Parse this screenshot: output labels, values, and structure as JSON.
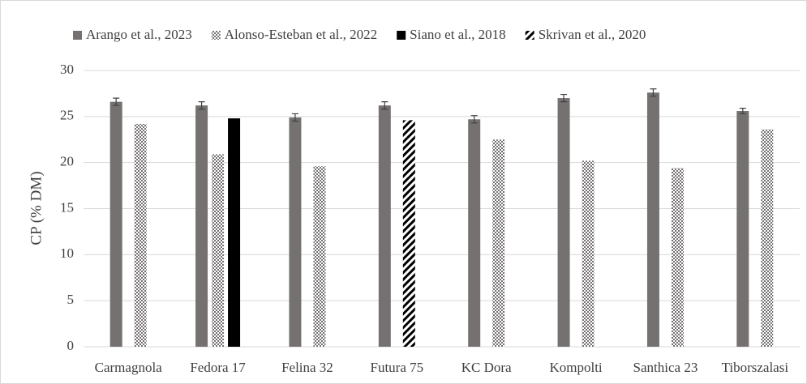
{
  "chart_data": {
    "type": "bar",
    "y_label": "CP (% DM)",
    "categories": [
      "Carmagnola",
      "Fedora 17",
      "Felina 32",
      "Futura 75",
      "KC Dora",
      "Kompolti",
      "Santhica 23",
      "Tiborszalasi"
    ],
    "series": [
      {
        "name": "Arango et al., 2023",
        "color": "#767171",
        "pattern": "solid",
        "values": [
          26.6,
          26.2,
          24.9,
          26.2,
          24.7,
          27.0,
          27.6,
          25.6
        ],
        "errors": [
          0.4,
          0.4,
          0.4,
          0.4,
          0.4,
          0.4,
          0.4,
          0.3
        ]
      },
      {
        "name": "Alonso-Esteban et al., 2022",
        "color": "#767171",
        "pattern": "checker",
        "values": [
          24.2,
          20.9,
          19.6,
          null,
          22.5,
          20.2,
          19.4,
          23.6
        ]
      },
      {
        "name": "Siano et al., 2018",
        "color": "#000000",
        "pattern": "solid",
        "values": [
          null,
          24.8,
          null,
          null,
          null,
          null,
          null,
          null
        ]
      },
      {
        "name": "Skrivan et al., 2020",
        "color": "#000000",
        "pattern": "diagonal",
        "values": [
          null,
          null,
          null,
          24.6,
          null,
          null,
          null,
          null
        ]
      }
    ],
    "ylim": [
      0,
      30
    ],
    "yticks": [
      0,
      5,
      10,
      15,
      20,
      25,
      30
    ],
    "grid": true,
    "legend": "top"
  }
}
